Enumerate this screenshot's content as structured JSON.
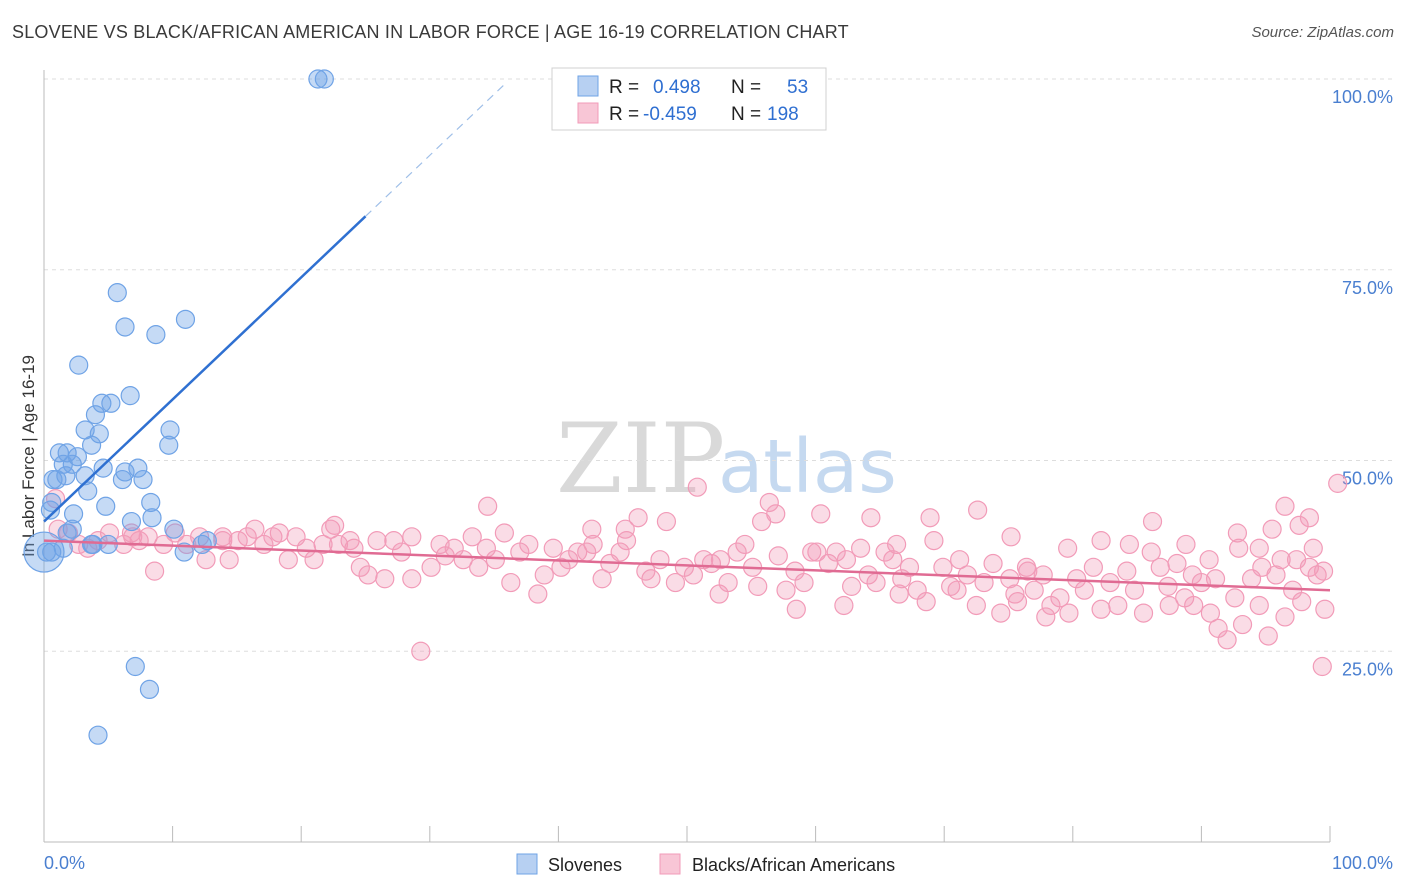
{
  "chart_data": {
    "type": "scatter",
    "title": "SLOVENE VS BLACK/AFRICAN AMERICAN IN LABOR FORCE | AGE 16-19 CORRELATION CHART",
    "source": "Source: ZipAtlas.com",
    "ylabel": "In Labor Force | Age 16-19",
    "xlim": [
      0,
      100
    ],
    "ylim": [
      0,
      100
    ],
    "x_tick_labels": [
      "0.0%",
      "100.0%"
    ],
    "y_ticks": [
      25,
      50,
      75,
      100
    ],
    "y_tick_labels": [
      "25.0%",
      "50.0%",
      "75.0%",
      "100.0%"
    ],
    "colors": {
      "slovenes": "#6fa3e6",
      "slovenes_line": "#2f70d1",
      "blacks": "#f29bb8",
      "blacks_line": "#e06b93",
      "grid": "#dddddd"
    },
    "legend": {
      "r_label": "R =",
      "n_label": "N =",
      "slovenes_r": "0.498",
      "slovenes_n": "53",
      "blacks_r": "-0.459",
      "blacks_n": "198"
    },
    "bottom_legend": [
      "Slovenes",
      "Blacks/African Americans"
    ],
    "watermark": [
      "ZIP",
      "atlas"
    ],
    "series": [
      {
        "name": "Slovenes",
        "trend": {
          "x0": 0,
          "y0": 42.0,
          "x1": 25,
          "y1": 82.0,
          "dash_to_x": 36
        },
        "points": [
          [
            21.3,
            100
          ],
          [
            21.8,
            100
          ],
          [
            5.7,
            72
          ],
          [
            6.3,
            67.5
          ],
          [
            8.7,
            66.5
          ],
          [
            11,
            68.5
          ],
          [
            2.7,
            62.5
          ],
          [
            6.7,
            58.5
          ],
          [
            4.5,
            57.5
          ],
          [
            4,
            56
          ],
          [
            5.2,
            57.5
          ],
          [
            3.2,
            54
          ],
          [
            4.3,
            53.5
          ],
          [
            9.8,
            54
          ],
          [
            3.7,
            52
          ],
          [
            1.2,
            51
          ],
          [
            1.8,
            51
          ],
          [
            2.6,
            50.5
          ],
          [
            1.5,
            49.5
          ],
          [
            2.2,
            49.5
          ],
          [
            7.3,
            49
          ],
          [
            4.6,
            49
          ],
          [
            6.3,
            48.5
          ],
          [
            9.7,
            52
          ],
          [
            3.2,
            48
          ],
          [
            1.7,
            48
          ],
          [
            0.7,
            47.5
          ],
          [
            1,
            47.5
          ],
          [
            6.1,
            47.5
          ],
          [
            7.7,
            47.5
          ],
          [
            3.4,
            46
          ],
          [
            8.3,
            44.5
          ],
          [
            0.6,
            44.5
          ],
          [
            4.8,
            44
          ],
          [
            0.5,
            43.5
          ],
          [
            2.3,
            43
          ],
          [
            8.4,
            42.5
          ],
          [
            6.8,
            42
          ],
          [
            2.2,
            41
          ],
          [
            10.1,
            41
          ],
          [
            3.7,
            39
          ],
          [
            3.8,
            39
          ],
          [
            1.5,
            38.5
          ],
          [
            10.9,
            38
          ],
          [
            12.7,
            39.5
          ],
          [
            0.6,
            38
          ],
          [
            0.2,
            38
          ],
          [
            7.1,
            23
          ],
          [
            8.2,
            20
          ],
          [
            4.2,
            14
          ],
          [
            1.8,
            40.5
          ],
          [
            5,
            39
          ],
          [
            12.3,
            39
          ]
        ],
        "big_point": [
          0,
          38
        ]
      },
      {
        "name": "Blacks/African Americans",
        "trend": {
          "x0": 0,
          "y0": 39.5,
          "x1": 100,
          "y1": 33.0
        },
        "points": [
          [
            0.9,
            45
          ],
          [
            1.1,
            41
          ],
          [
            1.9,
            40.5
          ],
          [
            2.7,
            39
          ],
          [
            3.4,
            38.5
          ],
          [
            4.2,
            39.5
          ],
          [
            5.1,
            40.5
          ],
          [
            6.2,
            39
          ],
          [
            6.8,
            40.5
          ],
          [
            7.4,
            39.5
          ],
          [
            8.1,
            40
          ],
          [
            8.6,
            35.5
          ],
          [
            9.3,
            39
          ],
          [
            10.2,
            40.5
          ],
          [
            11.1,
            39
          ],
          [
            12.1,
            40
          ],
          [
            12.6,
            37
          ],
          [
            13.9,
            39.5
          ],
          [
            14.4,
            37
          ],
          [
            15.1,
            39.5
          ],
          [
            15.8,
            40
          ],
          [
            16.4,
            41
          ],
          [
            17.1,
            39
          ],
          [
            17.8,
            40
          ],
          [
            18.3,
            40.5
          ],
          [
            19,
            37
          ],
          [
            19.6,
            40
          ],
          [
            20.4,
            38.5
          ],
          [
            21,
            37
          ],
          [
            21.7,
            39
          ],
          [
            22.3,
            41
          ],
          [
            22.9,
            39
          ],
          [
            23.8,
            39.5
          ],
          [
            24.1,
            38.5
          ],
          [
            24.6,
            36
          ],
          [
            25.2,
            35
          ],
          [
            25.9,
            39.5
          ],
          [
            26.5,
            34.5
          ],
          [
            27.2,
            39.5
          ],
          [
            27.8,
            38
          ],
          [
            28.6,
            34.5
          ],
          [
            29.3,
            25
          ],
          [
            30.1,
            36
          ],
          [
            30.8,
            39
          ],
          [
            31.2,
            37.5
          ],
          [
            31.9,
            38.5
          ],
          [
            32.6,
            37
          ],
          [
            33.3,
            40
          ],
          [
            33.8,
            36
          ],
          [
            34.4,
            38.5
          ],
          [
            35.1,
            37
          ],
          [
            35.8,
            40.5
          ],
          [
            36.3,
            34
          ],
          [
            37,
            38
          ],
          [
            37.7,
            39
          ],
          [
            38.4,
            32.5
          ],
          [
            38.9,
            35
          ],
          [
            39.6,
            38.5
          ],
          [
            40.2,
            36
          ],
          [
            40.8,
            37
          ],
          [
            41.5,
            38
          ],
          [
            42.2,
            38
          ],
          [
            42.7,
            39
          ],
          [
            43.4,
            34.5
          ],
          [
            44,
            36.5
          ],
          [
            44.8,
            38
          ],
          [
            45.3,
            39.5
          ],
          [
            46.2,
            42.5
          ],
          [
            46.8,
            35.5
          ],
          [
            47.2,
            34.5
          ],
          [
            47.9,
            37
          ],
          [
            48.4,
            42
          ],
          [
            49.1,
            34
          ],
          [
            49.8,
            36
          ],
          [
            50.5,
            35
          ],
          [
            51.3,
            37
          ],
          [
            51.9,
            36.5
          ],
          [
            52.6,
            37
          ],
          [
            53.2,
            34
          ],
          [
            53.9,
            38
          ],
          [
            54.5,
            39
          ],
          [
            55.1,
            36
          ],
          [
            55.8,
            42
          ],
          [
            56.4,
            44.5
          ],
          [
            57.1,
            37.5
          ],
          [
            57.7,
            33
          ],
          [
            58.4,
            35.5
          ],
          [
            59.1,
            34
          ],
          [
            59.7,
            38
          ],
          [
            60.4,
            43
          ],
          [
            61,
            36.5
          ],
          [
            61.6,
            38
          ],
          [
            62.2,
            31
          ],
          [
            62.8,
            33.5
          ],
          [
            63.5,
            38.5
          ],
          [
            64.1,
            35
          ],
          [
            64.7,
            34
          ],
          [
            65.4,
            38
          ],
          [
            66,
            37
          ],
          [
            66.7,
            34.5
          ],
          [
            67.3,
            36
          ],
          [
            67.9,
            33
          ],
          [
            68.6,
            31.5
          ],
          [
            69.2,
            39.5
          ],
          [
            69.9,
            36
          ],
          [
            70.5,
            33.5
          ],
          [
            71.2,
            37
          ],
          [
            71.8,
            35
          ],
          [
            72.5,
            31
          ],
          [
            73.1,
            34
          ],
          [
            73.8,
            36.5
          ],
          [
            74.4,
            30
          ],
          [
            75.1,
            34.5
          ],
          [
            75.7,
            31.5
          ],
          [
            76.4,
            36
          ],
          [
            77,
            33
          ],
          [
            77.7,
            35
          ],
          [
            78.3,
            31
          ],
          [
            79,
            32
          ],
          [
            79.6,
            38.5
          ],
          [
            80.3,
            34.5
          ],
          [
            80.9,
            33
          ],
          [
            81.6,
            36
          ],
          [
            82.2,
            30.5
          ],
          [
            82.9,
            34
          ],
          [
            83.5,
            31
          ],
          [
            84.2,
            35.5
          ],
          [
            84.8,
            33
          ],
          [
            85.5,
            30
          ],
          [
            86.1,
            38
          ],
          [
            86.8,
            36
          ],
          [
            87.4,
            33.5
          ],
          [
            88.1,
            36.5
          ],
          [
            88.7,
            32
          ],
          [
            89.4,
            31
          ],
          [
            90,
            34
          ],
          [
            90.7,
            30
          ],
          [
            91.3,
            28
          ],
          [
            92,
            26.5
          ],
          [
            92.6,
            32
          ],
          [
            93.2,
            28.5
          ],
          [
            93.9,
            34.5
          ],
          [
            94.5,
            31
          ],
          [
            95.2,
            27
          ],
          [
            95.8,
            35
          ],
          [
            96.5,
            29.5
          ],
          [
            97.1,
            33
          ],
          [
            97.8,
            31.5
          ],
          [
            98.4,
            36
          ],
          [
            99,
            35
          ],
          [
            99.6,
            30.5
          ],
          [
            42.6,
            41
          ],
          [
            64.3,
            42.5
          ],
          [
            75.2,
            40
          ],
          [
            76.5,
            35.5
          ],
          [
            82.2,
            39.5
          ],
          [
            84.4,
            39
          ],
          [
            86.2,
            42
          ],
          [
            88.8,
            39
          ],
          [
            90.6,
            37
          ],
          [
            92.8,
            40.5
          ],
          [
            94.5,
            38.5
          ],
          [
            95.5,
            41
          ],
          [
            96.5,
            44
          ],
          [
            97.6,
            41.5
          ],
          [
            98.7,
            38.5
          ],
          [
            99.5,
            35.5
          ],
          [
            72.6,
            43.5
          ],
          [
            68.9,
            42.5
          ],
          [
            56.9,
            43
          ],
          [
            50.8,
            46.5
          ],
          [
            45.2,
            41
          ],
          [
            28.6,
            40
          ],
          [
            13.9,
            40
          ],
          [
            6.9,
            40
          ],
          [
            22.6,
            41.5
          ],
          [
            34.5,
            44
          ],
          [
            66.3,
            39
          ],
          [
            62.4,
            37
          ],
          [
            60.1,
            38
          ],
          [
            77.9,
            29.5
          ],
          [
            79.7,
            30
          ],
          [
            87.5,
            31
          ],
          [
            89.3,
            35
          ],
          [
            91.1,
            34.5
          ],
          [
            92.9,
            38.5
          ],
          [
            94.7,
            36
          ],
          [
            96.2,
            37
          ],
          [
            97.4,
            37
          ],
          [
            98.4,
            42.5
          ],
          [
            99.4,
            23
          ],
          [
            100.6,
            47
          ],
          [
            75.5,
            32.5
          ],
          [
            71,
            33
          ],
          [
            66.5,
            32.5
          ],
          [
            58.5,
            30.5
          ],
          [
            55.5,
            33.5
          ],
          [
            52.5,
            32.5
          ]
        ]
      }
    ]
  }
}
